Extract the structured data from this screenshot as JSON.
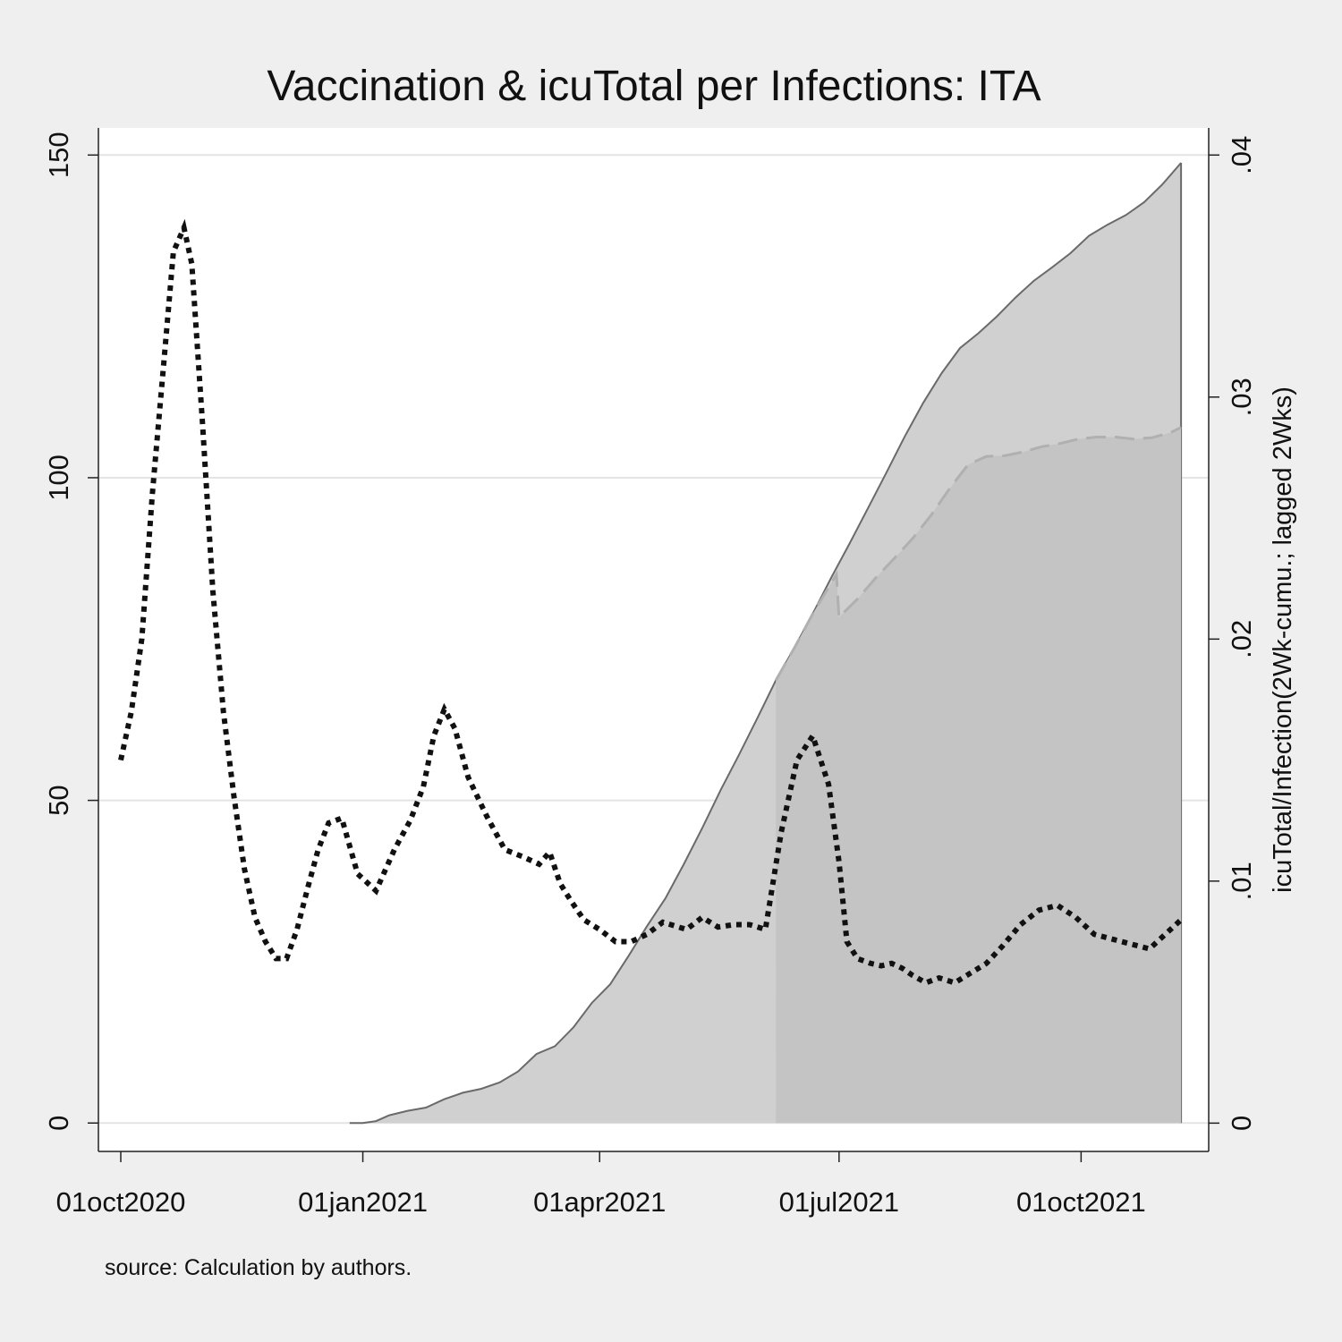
{
  "chart_data": {
    "type": "area",
    "title": "Vaccination & icuTotal per Infections: ITA",
    "source_note": "source: Calculation by authors.",
    "x_axis": {
      "type": "date",
      "range": [
        "2020-10-01",
        "2021-11-10"
      ],
      "ticks": [
        "01oct2020",
        "01jan2021",
        "01apr2021",
        "01jul2021",
        "01oct2021"
      ],
      "tick_dates": [
        "2020-10-01",
        "2021-01-01",
        "2021-04-01",
        "2021-07-01",
        "2021-10-01"
      ]
    },
    "y_left": {
      "range": [
        -4.4,
        154.2
      ],
      "ticks": [
        "0",
        "50",
        "100",
        "150"
      ],
      "tick_values": [
        0,
        50,
        100,
        150
      ],
      "label": ""
    },
    "y_right": {
      "range": [
        -0.00117,
        0.04112
      ],
      "ticks": [
        "0",
        ".01",
        ".02",
        ".03",
        ".04"
      ],
      "tick_values": [
        0,
        0.01,
        0.02,
        0.03,
        0.04
      ],
      "label": "icuTotal/Infection(2Wk-cumu.; lagged 2Wks)"
    },
    "grid": true,
    "legend": "none",
    "colors": {
      "background": "#efefef",
      "plot": "#ffffff",
      "area_dark": "#c4c4c4",
      "area_light": "#d0d0d0",
      "area_edge": "#6a6a6a",
      "dashed": "#b0b0b0",
      "dotted": "#111111",
      "grid": "#e4e4e4"
    },
    "series": [
      {
        "kind": "area",
        "axis": "left",
        "style": "solid",
        "x": [
          "2020-12-27",
          "2021-01-01",
          "2021-01-06",
          "2021-01-11",
          "2021-01-18",
          "2021-01-25",
          "2021-02-01",
          "2021-02-08",
          "2021-02-15",
          "2021-02-22",
          "2021-03-01",
          "2021-03-08",
          "2021-03-15",
          "2021-03-22",
          "2021-03-29",
          "2021-04-05",
          "2021-04-12",
          "2021-04-19",
          "2021-04-26",
          "2021-05-03",
          "2021-05-10",
          "2021-05-17",
          "2021-05-24",
          "2021-05-31",
          "2021-06-07",
          "2021-06-14",
          "2021-06-21",
          "2021-06-28",
          "2021-07-05",
          "2021-07-12",
          "2021-07-19",
          "2021-07-26",
          "2021-08-02",
          "2021-08-09",
          "2021-08-16",
          "2021-08-23",
          "2021-08-30",
          "2021-09-06",
          "2021-09-13",
          "2021-09-20",
          "2021-09-27",
          "2021-10-04",
          "2021-10-11",
          "2021-10-18",
          "2021-10-25",
          "2021-11-01",
          "2021-11-08"
        ],
        "values": [
          0,
          0,
          0.3,
          1.2,
          1.9,
          2.4,
          3.7,
          4.7,
          5.3,
          6.3,
          8.0,
          10.7,
          11.9,
          14.8,
          18.6,
          21.5,
          25.9,
          30.5,
          34.8,
          40.1,
          45.7,
          51.6,
          57.1,
          62.8,
          68.6,
          73.6,
          78.9,
          84.5,
          89.8,
          95.3,
          100.8,
          106.4,
          111.6,
          116.2,
          120.1,
          122.4,
          125.0,
          127.9,
          130.5,
          132.6,
          134.8,
          137.5,
          139.2,
          140.7,
          142.7,
          145.5,
          148.8
        ]
      },
      {
        "kind": "area",
        "axis": "left",
        "style": "dashed",
        "x": [
          "2021-06-07",
          "2021-06-14",
          "2021-06-21",
          "2021-06-30",
          "2021-07-01",
          "2021-07-08",
          "2021-07-15",
          "2021-07-22",
          "2021-07-29",
          "2021-08-05",
          "2021-08-12",
          "2021-08-19",
          "2021-08-26",
          "2021-09-02",
          "2021-09-09",
          "2021-09-16",
          "2021-09-23",
          "2021-09-30",
          "2021-10-07",
          "2021-10-14",
          "2021-10-21",
          "2021-10-28",
          "2021-11-04",
          "2021-11-08"
        ],
        "values": [
          68.6,
          73.6,
          78.9,
          85.0,
          78.4,
          81.2,
          84.5,
          87.5,
          90.6,
          94.2,
          98.3,
          102.0,
          103.3,
          103.4,
          104.0,
          104.8,
          105.3,
          106.0,
          106.3,
          106.3,
          106.0,
          106.2,
          107.0,
          107.8
        ]
      },
      {
        "kind": "line",
        "axis": "right",
        "style": "dotted",
        "x": [
          "2020-10-01",
          "2020-10-05",
          "2020-10-09",
          "2020-10-13",
          "2020-10-17",
          "2020-10-21",
          "2020-10-25",
          "2020-10-28",
          "2020-11-01",
          "2020-11-05",
          "2020-11-09",
          "2020-11-13",
          "2020-11-17",
          "2020-11-21",
          "2020-11-25",
          "2020-11-29",
          "2020-12-03",
          "2020-12-07",
          "2020-12-11",
          "2020-12-15",
          "2020-12-19",
          "2020-12-24",
          "2020-12-30",
          "2021-01-06",
          "2021-01-13",
          "2021-01-19",
          "2021-01-24",
          "2021-01-28",
          "2021-02-01",
          "2021-02-05",
          "2021-02-10",
          "2021-02-17",
          "2021-02-24",
          "2021-03-03",
          "2021-03-09",
          "2021-03-13",
          "2021-03-17",
          "2021-03-21",
          "2021-03-26",
          "2021-04-01",
          "2021-04-07",
          "2021-04-13",
          "2021-04-19",
          "2021-04-25",
          "2021-05-01",
          "2021-05-04",
          "2021-05-10",
          "2021-05-16",
          "2021-05-22",
          "2021-05-28",
          "2021-06-03",
          "2021-06-09",
          "2021-06-15",
          "2021-06-21",
          "2021-06-27",
          "2021-07-01",
          "2021-07-04",
          "2021-07-08",
          "2021-07-13",
          "2021-07-17",
          "2021-07-21",
          "2021-07-25",
          "2021-07-29",
          "2021-08-03",
          "2021-08-08",
          "2021-08-14",
          "2021-08-20",
          "2021-08-26",
          "2021-09-01",
          "2021-09-08",
          "2021-09-15",
          "2021-09-22",
          "2021-09-29",
          "2021-10-06",
          "2021-10-13",
          "2021-10-20",
          "2021-10-27",
          "2021-11-03",
          "2021-11-08"
        ],
        "values": [
          0.015,
          0.017,
          0.02,
          0.026,
          0.031,
          0.036,
          0.037,
          0.0355,
          0.029,
          0.022,
          0.017,
          0.0135,
          0.0105,
          0.0085,
          0.0075,
          0.0068,
          0.0068,
          0.008,
          0.0097,
          0.0113,
          0.0124,
          0.0126,
          0.0103,
          0.0096,
          0.0113,
          0.0125,
          0.0139,
          0.016,
          0.0171,
          0.0163,
          0.0143,
          0.0127,
          0.0113,
          0.011,
          0.0107,
          0.0112,
          0.0099,
          0.0092,
          0.0084,
          0.008,
          0.0075,
          0.0075,
          0.0078,
          0.0083,
          0.0081,
          0.008,
          0.0085,
          0.0081,
          0.0082,
          0.0082,
          0.008,
          0.012,
          0.015,
          0.016,
          0.014,
          0.0108,
          0.0075,
          0.0068,
          0.0066,
          0.0065,
          0.0066,
          0.0064,
          0.0061,
          0.0058,
          0.006,
          0.0058,
          0.0062,
          0.0066,
          0.0073,
          0.0082,
          0.0088,
          0.009,
          0.0085,
          0.0078,
          0.0076,
          0.0074,
          0.0072,
          0.0079,
          0.0084
        ]
      }
    ]
  }
}
